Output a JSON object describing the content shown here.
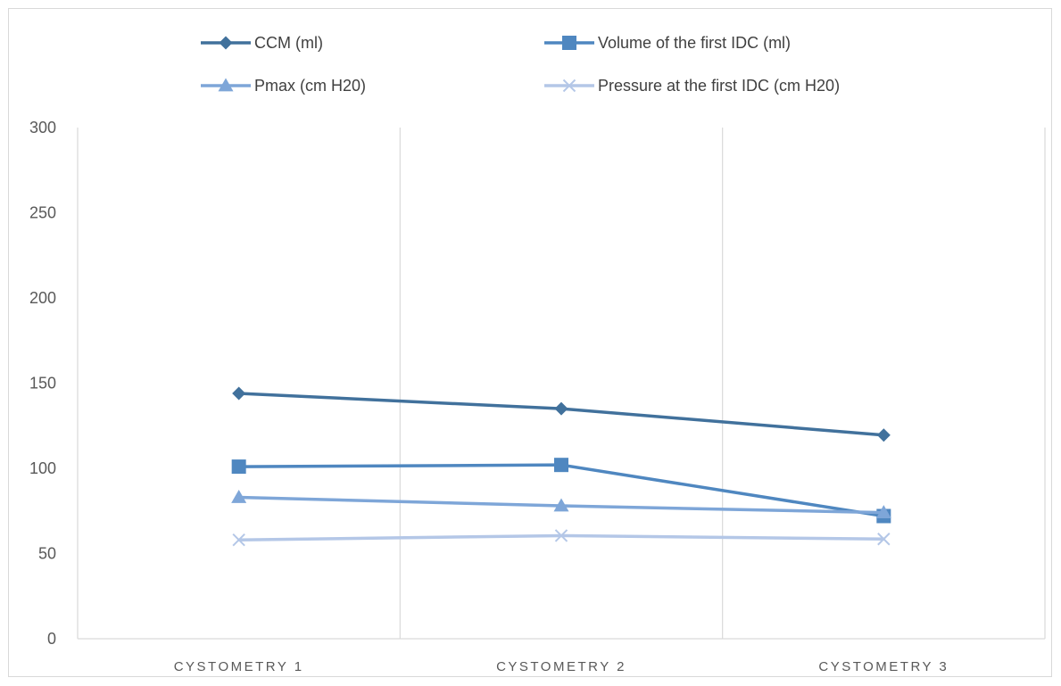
{
  "chart_data": {
    "type": "line",
    "title": "",
    "xlabel": "",
    "ylabel": "",
    "categories": [
      "CYSTOMETRY 1",
      "CYSTOMETRY 2",
      "CYSTOMETRY 3"
    ],
    "ylim": [
      0,
      300
    ],
    "yticks": [
      "0",
      "50",
      "100",
      "150",
      "200",
      "250",
      "300"
    ],
    "grid": "vertical category separators",
    "legend_position": "top",
    "series": [
      {
        "name": "CCM (ml)",
        "values": [
          144,
          135,
          119.5
        ],
        "color": "#41719c",
        "marker": "diamond"
      },
      {
        "name": "Volume of the first IDC (ml)",
        "values": [
          101,
          102,
          72
        ],
        "color": "#4f87c0",
        "marker": "square"
      },
      {
        "name": "Pmax (cm H20)",
        "values": [
          83,
          78,
          74
        ],
        "color": "#7ea6d8",
        "marker": "triangle"
      },
      {
        "name": "Pressure at the first IDC (cm H20)",
        "values": [
          58,
          60.5,
          58.5
        ],
        "color": "#b4c7e7",
        "marker": "x"
      }
    ]
  }
}
